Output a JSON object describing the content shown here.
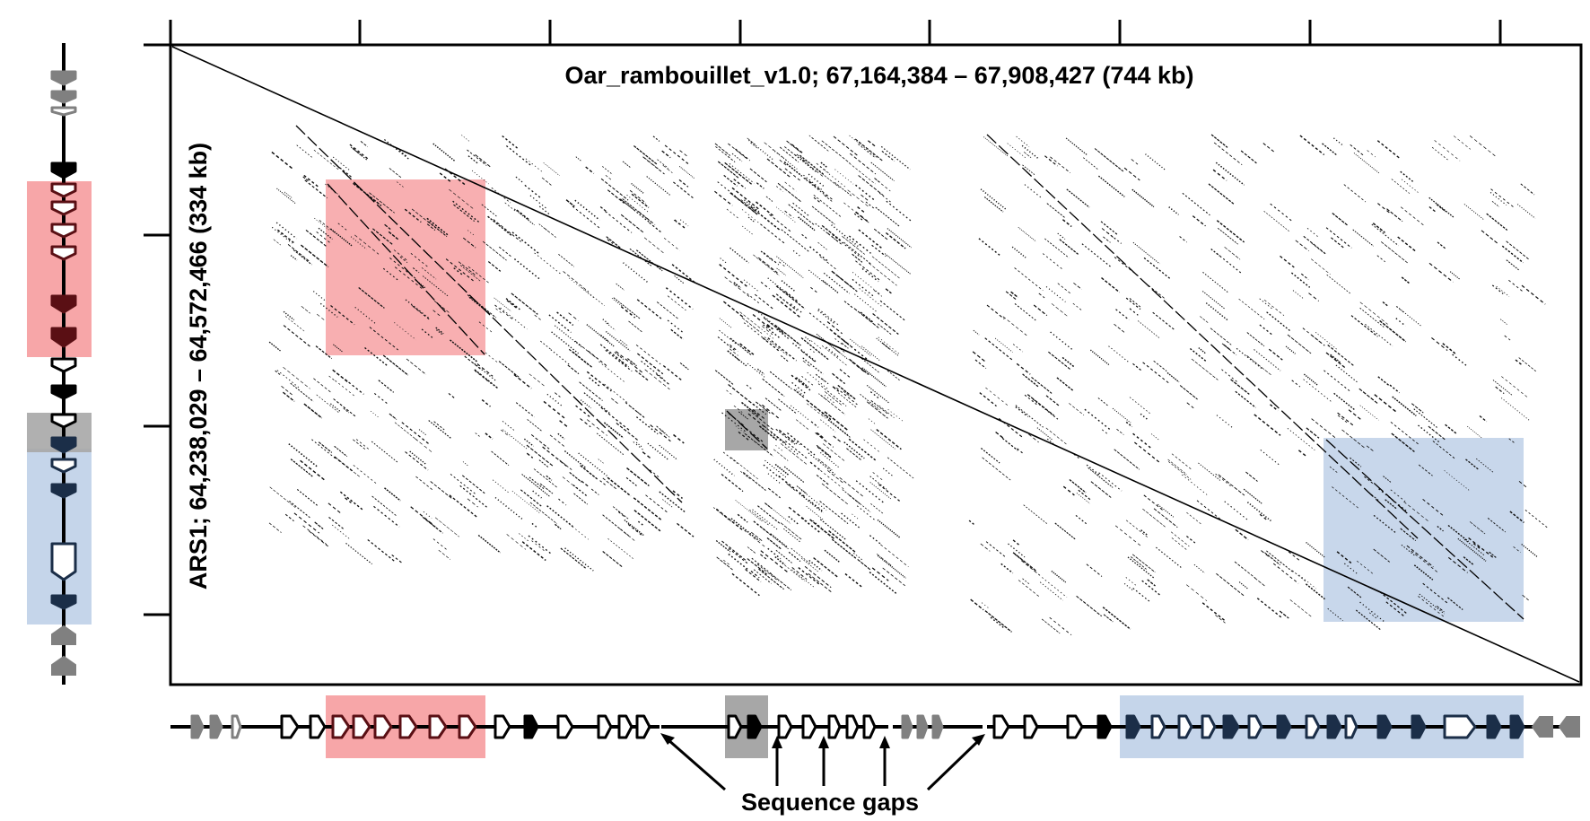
{
  "plot": {
    "x_title": "Oar_rambouillet_v1.0; 67,164,384 – 67,908,427 (744 kb)",
    "y_title": "ARS1; 64,238,029 – 64,572,466 (334 kb)",
    "gaps_label": "Sequence gaps"
  },
  "colors": {
    "red_region": "#f7a6a8",
    "grey_region": "#a7a7a7",
    "blue_region": "#c5d5ea",
    "gene_black": "#000000",
    "gene_grey": "#808080",
    "gene_dark_red": "#5a0f14",
    "gene_navy": "#1b2e48"
  },
  "regions": [
    {
      "name": "red-duplication-region",
      "color": "#f7a6a8"
    },
    {
      "name": "grey-region",
      "color": "#a7a7a7"
    },
    {
      "name": "blue-duplication-region",
      "color": "#c5d5ea"
    }
  ]
}
